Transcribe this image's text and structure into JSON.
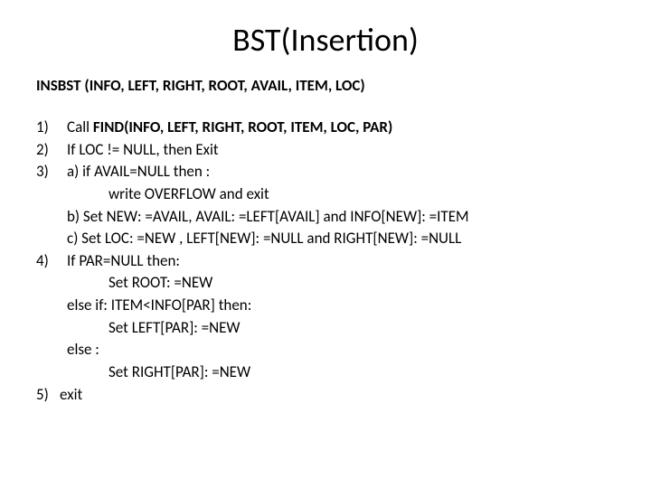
{
  "title": "BST(Insertion)",
  "subtitle": "INSBST (INFO, LEFT, RIGHT, ROOT, AVAIL, ITEM, LOC)",
  "steps": {
    "s1_num": "1)",
    "s1_prefix": "Call ",
    "s1_bold": "FIND(INFO, LEFT, RIGHT, ROOT, ITEM, LOC, PAR)",
    "s2_num": "2)",
    "s2_text": "If LOC != NULL,  then  Exit",
    "s3_num": "3)",
    "s3_text": "a) if AVAIL=NULL then :",
    "s3_a_indent": "write  OVERFLOW   and   exit",
    "s3_b": "b) Set  NEW: =AVAIL,   AVAIL: =LEFT[AVAIL]   and   INFO[NEW]: =ITEM",
    "s3_c": "c) Set  LOC: =NEW ,   LEFT[NEW]: =NULL   and   RIGHT[NEW]: =NULL",
    "s4_num": "4)",
    "s4_text": "If   PAR=NULL then:",
    "s4_a": "Set  ROOT: =NEW",
    "s4_elseif": "else if: ITEM<INFO[PAR] then:",
    "s4_b": "Set  LEFT[PAR]: =NEW",
    "s4_else": "else :",
    "s4_c": "Set  RIGHT[PAR]: =NEW",
    "s5_num": "5)",
    "s5_text": "exit"
  }
}
